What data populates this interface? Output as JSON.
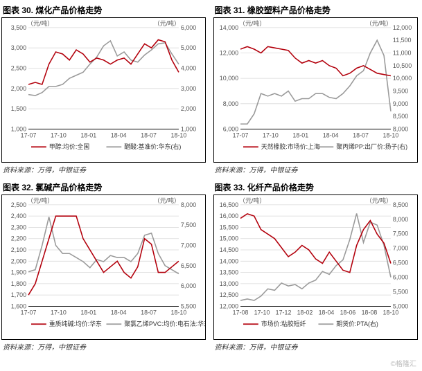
{
  "watermark": "©格隆汇",
  "charts": [
    {
      "title": "图表 30. 煤化产品价格走势",
      "source": "资料来源：万得，中银证券",
      "left_unit": "（元/吨）",
      "right_unit": "（元/吨）",
      "x_labels": [
        "17-07",
        "17-10",
        "18-01",
        "18-04",
        "18-07",
        "18-10"
      ],
      "left_axis": {
        "min": 1000,
        "max": 3500,
        "step": 500
      },
      "right_axis": {
        "min": 1000,
        "max": 6000,
        "step": 1000
      },
      "colors": {
        "s1": "#b3000c",
        "s2": "#9a9a9a",
        "grid": "#d9d9d9",
        "border": "#000"
      },
      "legend": [
        {
          "label": "甲醇:均价:全国",
          "color": "#b3000c"
        },
        {
          "label": "醋酸:基准价:华东(右)",
          "color": "#9a9a9a"
        }
      ],
      "series1": [
        2100,
        2150,
        2100,
        2600,
        2900,
        2850,
        2700,
        2950,
        2850,
        2650,
        2750,
        2700,
        2600,
        2700,
        2750,
        2600,
        2850,
        3100,
        3000,
        3200,
        3150,
        2700,
        2400
      ],
      "series2": [
        2700,
        2650,
        2800,
        3100,
        3100,
        3200,
        3500,
        3650,
        3800,
        4200,
        4550,
        5100,
        5350,
        4600,
        4800,
        4400,
        4300,
        4650,
        4900,
        5200,
        5250,
        4700,
        4200
      ],
      "line_width": 1.6
    },
    {
      "title": "图表 31. 橡胶塑料产品价格走势",
      "source": "资料来源：万得，中银证券",
      "left_unit": "（元/吨）",
      "right_unit": "（元/吨）",
      "x_labels": [
        "17-07",
        "17-10",
        "18-01",
        "18-04",
        "18-07",
        "18-10"
      ],
      "left_axis": {
        "min": 6000,
        "max": 14000,
        "step": 2000
      },
      "right_axis": {
        "min": 8000,
        "max": 12000,
        "step": 500
      },
      "colors": {
        "s1": "#b3000c",
        "s2": "#9a9a9a",
        "grid": "#d9d9d9",
        "border": "#000"
      },
      "legend": [
        {
          "label": "天然橡胶:市场价:上海",
          "color": "#b3000c"
        },
        {
          "label": "聚丙烯PP:出厂价:扬子(右)",
          "color": "#9a9a9a"
        }
      ],
      "series1": [
        12300,
        12500,
        12300,
        12000,
        12500,
        12400,
        12300,
        12200,
        11600,
        11200,
        11400,
        11200,
        11400,
        11000,
        10800,
        10200,
        10400,
        10800,
        11000,
        10700,
        10400,
        10300,
        10200
      ],
      "series2": [
        8200,
        8200,
        8600,
        9400,
        9300,
        9400,
        9300,
        9500,
        9100,
        9200,
        9200,
        9400,
        9400,
        9250,
        9200,
        9400,
        9700,
        10100,
        10300,
        11000,
        11500,
        10900,
        8700
      ],
      "line_width": 1.6
    },
    {
      "title": "图表 32. 氯碱产品价格走势",
      "source": "资料来源：万得，中银证券",
      "left_unit": "（元/吨）",
      "right_unit": "（元/吨）",
      "x_labels": [
        "17-07",
        "17-10",
        "18-01",
        "18-04",
        "18-07",
        "18-10"
      ],
      "left_axis": {
        "min": 1600,
        "max": 2500,
        "step": 100
      },
      "right_axis": {
        "min": 5500,
        "max": 8000,
        "step": 500
      },
      "colors": {
        "s1": "#b3000c",
        "s2": "#9a9a9a",
        "grid": "#d9d9d9",
        "border": "#000"
      },
      "legend": [
        {
          "label": "重质纯碱:均价:华东",
          "color": "#b3000c"
        },
        {
          "label": "聚氯乙烯PVC:均价:电石法:华东(右)",
          "color": "#9a9a9a"
        }
      ],
      "series1": [
        1700,
        1800,
        2000,
        2200,
        2400,
        2400,
        2400,
        2400,
        2200,
        2100,
        2000,
        1900,
        1950,
        2000,
        1900,
        1850,
        1950,
        2200,
        2150,
        1900,
        1900,
        1950,
        2000
      ],
      "series2": [
        6350,
        6400,
        7000,
        7700,
        7000,
        6800,
        6800,
        6700,
        6600,
        6450,
        6650,
        6600,
        6750,
        6700,
        6700,
        6600,
        6800,
        7250,
        7300,
        6800,
        6500,
        6400,
        6300
      ],
      "line_width": 1.6
    },
    {
      "title": "图表 33. 化纤产品价格走势",
      "source": "资料来源：万得，中银证券",
      "left_unit": "（元/吨）",
      "right_unit": "（元/吨）",
      "x_labels": [
        "17-08",
        "17-10",
        "17-12",
        "18-02",
        "18-04",
        "18-06",
        "18-08",
        "18-10"
      ],
      "left_axis": {
        "min": 12000,
        "max": 16500,
        "step": 500
      },
      "right_axis": {
        "min": 5000,
        "max": 8500,
        "step": 500
      },
      "colors": {
        "s1": "#b3000c",
        "s2": "#9a9a9a",
        "grid": "#d9d9d9",
        "border": "#000"
      },
      "legend": [
        {
          "label": "市场价:粘胶短纤",
          "color": "#b3000c"
        },
        {
          "label": "期货价:PTA(右)",
          "color": "#9a9a9a"
        }
      ],
      "series1": [
        15900,
        16100,
        16000,
        15400,
        15200,
        15000,
        14600,
        14200,
        14400,
        14700,
        14500,
        14100,
        13900,
        14400,
        14000,
        13600,
        13500,
        14700,
        15400,
        15800,
        15200,
        14800,
        13900
      ],
      "series2": [
        5200,
        5250,
        5200,
        5350,
        5600,
        5550,
        5800,
        5700,
        5750,
        5600,
        5800,
        5900,
        6200,
        6100,
        6400,
        6600,
        7300,
        8200,
        7200,
        7900,
        7800,
        7100,
        6000
      ],
      "line_width": 1.6
    }
  ]
}
